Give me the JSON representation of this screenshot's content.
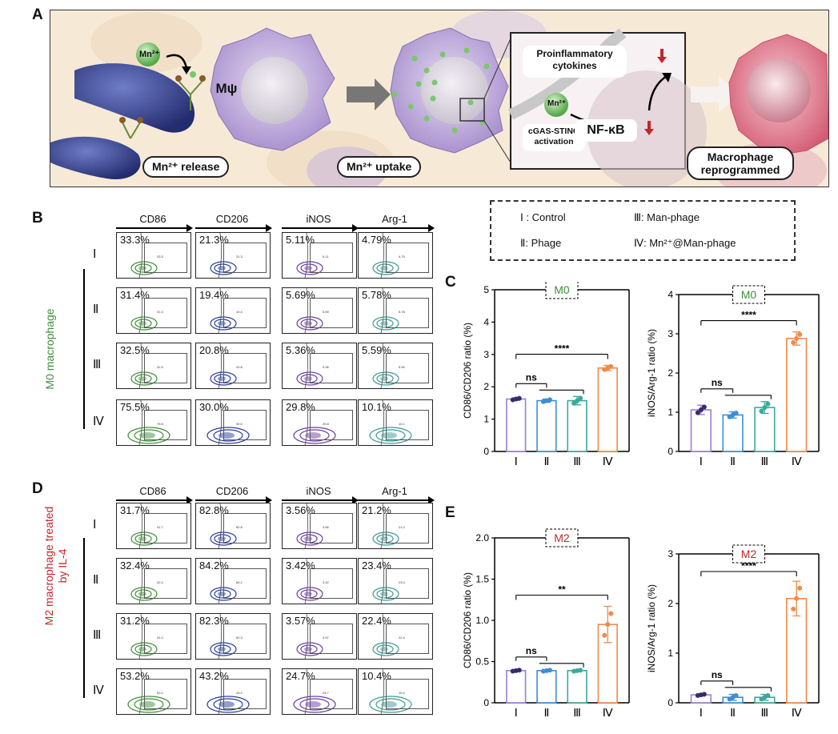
{
  "panel_labels": {
    "a": "A",
    "b": "B",
    "c": "C",
    "d": "D",
    "e": "E"
  },
  "panel_a": {
    "mn_bubble": "Mn²⁺",
    "cell_label": "Mψ",
    "release_label": "Mn²⁺ release",
    "uptake_label": "Mn²⁺ uptake",
    "inset_mn": "Mn²⁺",
    "proinflammatory": "Proinflammatory cytokines",
    "pathway": "cGAS-STING activation",
    "nfkb": "NF-κB",
    "reprogrammed": "Macrophage reprogrammed"
  },
  "legend": {
    "c1": "Ⅰ : Control",
    "c2": "Ⅱ: Phage",
    "c3": "Ⅲ: Man-phage",
    "c4": "Ⅳ: Mn²⁺@Man-phage"
  },
  "flow_headers": [
    "CD86",
    "CD206",
    "iNOS",
    "Arg-1"
  ],
  "row_labels": [
    "Ⅰ",
    "Ⅱ",
    "Ⅲ",
    "Ⅳ"
  ],
  "group_b": "M0 macrophage",
  "group_d": "M2 macrophage treated by IL-4",
  "flow_b": [
    [
      "33.3%",
      "21.3%",
      "5.11%",
      "4.79%"
    ],
    [
      "31.4%",
      "19.4%",
      "5.69%",
      "5.78%"
    ],
    [
      "32.5%",
      "20.8%",
      "5.36%",
      "5.59%"
    ],
    [
      "75.5%",
      "30.0%",
      "29.8%",
      "10.1%"
    ]
  ],
  "flow_d": [
    [
      "31.7%",
      "82.8%",
      "3.56%",
      "21.2%"
    ],
    [
      "32.4%",
      "84.2%",
      "3.42%",
      "23.4%"
    ],
    [
      "31.2%",
      "82.3%",
      "3.57%",
      "22.4%"
    ],
    [
      "53.2%",
      "43.2%",
      "24.7%",
      "10.4%"
    ]
  ],
  "colors": {
    "green": "#3f8f3a",
    "blue": "#2a3f9a",
    "purple": "#6b3fa0",
    "teal": "#3a9a94",
    "bar1": "#9b7fd4",
    "bar2": "#3a8fd8",
    "bar3": "#3aaa9a",
    "bar4": "#f08a4a",
    "red": "#c0282a"
  },
  "chart_data": [
    {
      "id": "c1",
      "type": "bar",
      "tag": "M0",
      "tag_color": "green",
      "ylabel": "CD86/CD206 ratio (%)",
      "categories": [
        "Ⅰ",
        "Ⅱ",
        "Ⅲ",
        "Ⅳ"
      ],
      "values": [
        1.62,
        1.57,
        1.57,
        2.58
      ],
      "errors": [
        0.04,
        0.05,
        0.13,
        0.08
      ],
      "ylim": [
        0,
        5
      ],
      "yticks": [
        "0",
        "1",
        "2",
        "3",
        "4",
        "5"
      ],
      "sig": "****"
    },
    {
      "id": "c2",
      "type": "bar",
      "tag": "M0",
      "tag_color": "green",
      "ylabel": "iNOS/Arg-1 ratio (%)",
      "categories": [
        "Ⅰ",
        "Ⅱ",
        "Ⅲ",
        "Ⅳ"
      ],
      "values": [
        1.06,
        0.93,
        1.12,
        2.88
      ],
      "errors": [
        0.12,
        0.08,
        0.15,
        0.17
      ],
      "ylim": [
        0,
        4
      ],
      "yticks": [
        "0",
        "1",
        "2",
        "3",
        "4"
      ],
      "sig": "****"
    },
    {
      "id": "e1",
      "type": "bar",
      "tag": "M2",
      "tag_color": "red",
      "ylabel": "CD86/CD206 ratio (%)",
      "categories": [
        "Ⅰ",
        "Ⅱ",
        "Ⅲ",
        "Ⅳ"
      ],
      "values": [
        0.39,
        0.39,
        0.39,
        0.95
      ],
      "errors": [
        0.01,
        0.01,
        0.01,
        0.22
      ],
      "ylim": [
        0,
        2
      ],
      "yticks": [
        "0",
        "0.5",
        "1.0",
        "1.5",
        "2.0"
      ],
      "sig": "**"
    },
    {
      "id": "e2",
      "type": "bar",
      "tag": "M2",
      "tag_color": "red",
      "ylabel": "iNOS/Arg-1 ratio (%)",
      "categories": [
        "Ⅰ",
        "Ⅱ",
        "Ⅲ",
        "Ⅳ"
      ],
      "values": [
        0.16,
        0.11,
        0.11,
        2.1
      ],
      "errors": [
        0.02,
        0.06,
        0.06,
        0.35
      ],
      "ylim": [
        0,
        3
      ],
      "yticks": [
        "0",
        "1",
        "2",
        "3"
      ],
      "sig": "****"
    }
  ],
  "ns_label": "ns",
  "tiny_vals_b": [
    [
      "33.3",
      "21.3",
      "5.11",
      "4.79"
    ],
    [
      "31.4",
      "19.4",
      "5.69",
      "5.78"
    ],
    [
      "32.5",
      "20.8",
      "5.36",
      "5.59"
    ],
    [
      "75.5",
      "30.0",
      "29.8",
      "10.1"
    ]
  ],
  "tiny_vals_d": [
    [
      "31.7",
      "82.8",
      "3.56",
      "21.2"
    ],
    [
      "32.4",
      "84.2",
      "3.42",
      "23.4"
    ],
    [
      "31.2",
      "82.3",
      "3.57",
      "22.4"
    ],
    [
      "53.2",
      "43.2",
      "24.7",
      "10.4"
    ]
  ]
}
